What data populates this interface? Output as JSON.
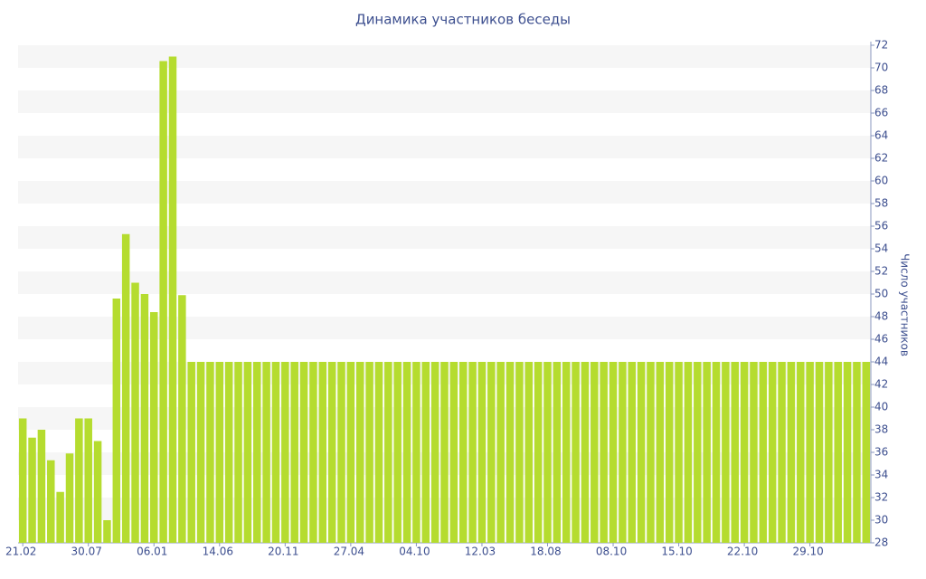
{
  "chart_data": {
    "type": "bar",
    "title": "Динамика участников беседы",
    "y_label": "Число участников",
    "categories": [
      "21.02",
      null,
      null,
      null,
      null,
      null,
      null,
      "30.07",
      null,
      null,
      null,
      null,
      null,
      null,
      "06.01",
      null,
      null,
      null,
      null,
      null,
      null,
      "14.06",
      null,
      null,
      null,
      null,
      null,
      null,
      "20.11",
      null,
      null,
      null,
      null,
      null,
      null,
      "27.04",
      null,
      null,
      null,
      null,
      null,
      null,
      "04.10",
      null,
      null,
      null,
      null,
      null,
      null,
      "12.03",
      null,
      null,
      null,
      null,
      null,
      null,
      "18.08",
      null,
      null,
      null,
      null,
      null,
      null,
      "08.10",
      null,
      null,
      null,
      null,
      null,
      null,
      "15.10",
      null,
      null,
      null,
      null,
      null,
      null,
      "22.10",
      null,
      null,
      null,
      null,
      null,
      null,
      "29.10",
      null,
      null,
      null,
      null,
      null,
      null
    ],
    "values": [
      39,
      37.3,
      38,
      35.3,
      32.5,
      35.9,
      39,
      39,
      37,
      30,
      49.6,
      55.3,
      51,
      50,
      48.4,
      70.6,
      71,
      49.9,
      44,
      44,
      44,
      44,
      44,
      44,
      44,
      44,
      44,
      44,
      44,
      44,
      44,
      44,
      44,
      44,
      44,
      44,
      44,
      44,
      44,
      44,
      44,
      44,
      44,
      44,
      44,
      44,
      44,
      44,
      44,
      44,
      44,
      44,
      44,
      44,
      44,
      44,
      44,
      44,
      44,
      44,
      44,
      44,
      44,
      44,
      44,
      44,
      44,
      44,
      44,
      44,
      44,
      44,
      44,
      44,
      44,
      44,
      44,
      44,
      44,
      44,
      44,
      44,
      44,
      44,
      44,
      44,
      44,
      44,
      44,
      44,
      44
    ],
    "color": "#b5dc2f",
    "ylim": [
      28,
      72
    ],
    "yticks": [
      28,
      30,
      32,
      34,
      36,
      38,
      40,
      42,
      44,
      46,
      48,
      50,
      52,
      54,
      56,
      58,
      60,
      62,
      64,
      66,
      68,
      70,
      72
    ],
    "y_axis_side": "right",
    "grid": "stripes"
  }
}
